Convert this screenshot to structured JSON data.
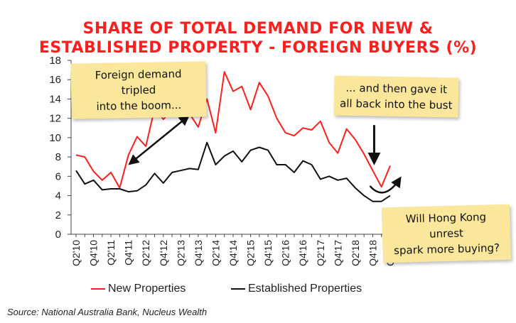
{
  "chart_data": {
    "type": "line",
    "title_line1": "SHARE OF TOTAL DEMAND FOR NEW &",
    "title_line2": "ESTABLISHED PROPERTY - FOREIGN BUYERS (%)",
    "xlabel": "",
    "ylabel": "",
    "ylim": [
      0,
      18
    ],
    "yticks": [
      0,
      2,
      4,
      6,
      8,
      10,
      12,
      14,
      16,
      18
    ],
    "grid": false,
    "legend_position": "bottom",
    "x": [
      "Q2'10",
      "Q3'10",
      "Q4'10",
      "Q1'11",
      "Q2'11",
      "Q3'11",
      "Q4'11",
      "Q1'12",
      "Q2'12",
      "Q3'12",
      "Q4'12",
      "Q1'13",
      "Q2'13",
      "Q3'13",
      "Q4'13",
      "Q1'14",
      "Q2'14",
      "Q3'14",
      "Q4'14",
      "Q1'15",
      "Q2'15",
      "Q3'15",
      "Q4'15",
      "Q1'16",
      "Q2'16",
      "Q3'16",
      "Q4'16",
      "Q1'17",
      "Q2'17",
      "Q3'17",
      "Q4'17",
      "Q1'18",
      "Q2'18",
      "Q3'18",
      "Q4'18",
      "Q1'19",
      "Q2'19"
    ],
    "xtick_labels": [
      "Q2'10",
      "Q4'10",
      "Q2'11",
      "Q4'11",
      "Q2'12",
      "Q4'12",
      "Q2'13",
      "Q4'13",
      "Q2'14",
      "Q4'14",
      "Q2'15",
      "Q4'15",
      "Q2'16",
      "Q4'16",
      "Q2'17",
      "Q4'17",
      "Q2'18",
      "Q4'18",
      "Q2'19"
    ],
    "series": [
      {
        "name": "New Properties",
        "color": "#ff1f1f",
        "values": [
          8.2,
          8.0,
          6.5,
          5.6,
          6.4,
          4.8,
          8.2,
          10.1,
          9.1,
          13.0,
          11.9,
          12.8,
          12.7,
          12.5,
          11.1,
          14.0,
          10.5,
          16.8,
          14.8,
          15.3,
          12.9,
          15.7,
          14.3,
          12.0,
          10.5,
          10.2,
          11.0,
          10.8,
          11.7,
          9.5,
          8.4,
          10.9,
          9.8,
          8.3,
          6.6,
          4.9,
          7.1
        ]
      },
      {
        "name": "Established Properties",
        "color": "#111111",
        "values": [
          6.6,
          5.2,
          5.6,
          4.6,
          4.7,
          4.7,
          4.4,
          4.5,
          5.1,
          6.3,
          5.3,
          6.4,
          6.6,
          6.8,
          6.7,
          9.5,
          7.2,
          8.1,
          8.6,
          7.5,
          8.7,
          9.0,
          8.7,
          7.2,
          7.2,
          6.4,
          7.6,
          7.2,
          5.7,
          6.0,
          5.6,
          5.8,
          4.8,
          4.0,
          3.4,
          3.4,
          4.0
        ]
      }
    ],
    "annotations": [
      {
        "id": "boom",
        "lines": [
          "Foreign demand tripled",
          "into the boom..."
        ]
      },
      {
        "id": "bust",
        "lines": [
          "... and then gave it",
          "all back into the bust"
        ]
      },
      {
        "id": "hk",
        "lines": [
          "Will Hong Kong unrest",
          "spark more buying?"
        ]
      }
    ]
  },
  "source": "Source: National Australia Bank, Nucleus Wealth",
  "colors": {
    "title": "#ff1f1f",
    "note_bg": "#fbe79b",
    "axis": "#444444"
  }
}
